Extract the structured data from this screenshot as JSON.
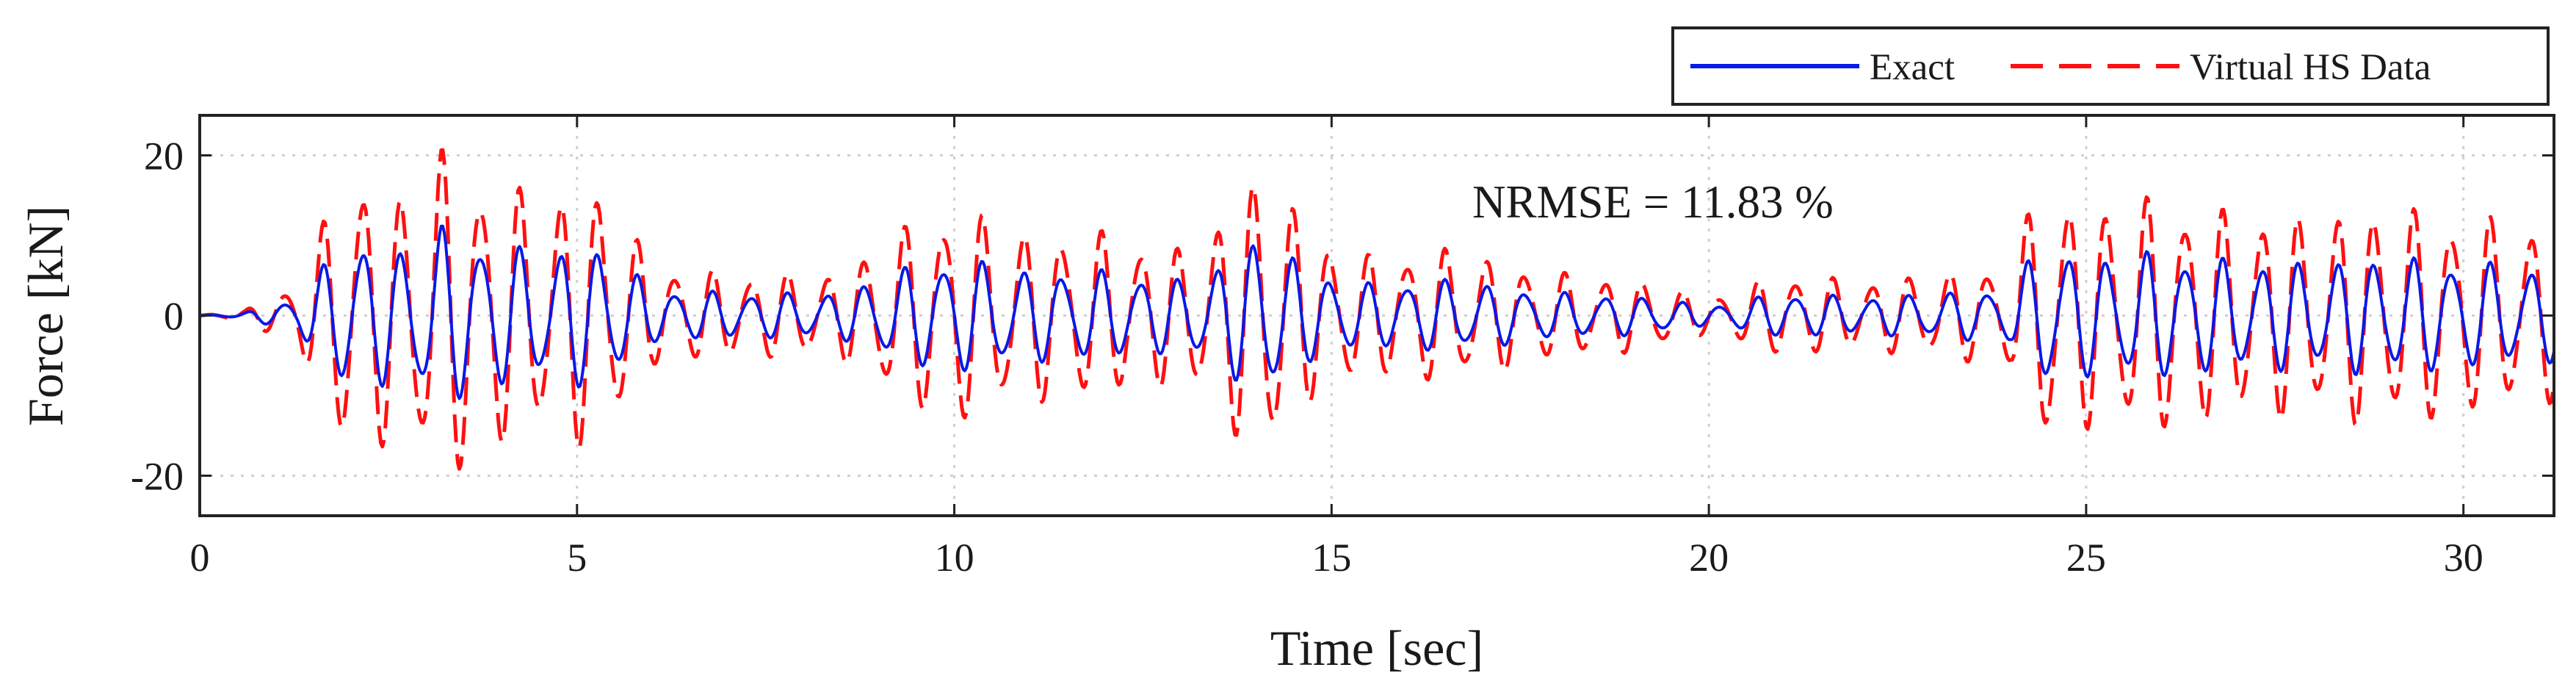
{
  "chart_data": {
    "type": "line",
    "title": "",
    "xlabel": "Time [sec]",
    "ylabel": "Force [kN]",
    "xlim": [
      0,
      31.2
    ],
    "ylim": [
      -25,
      25
    ],
    "x_ticks": [
      0,
      5,
      10,
      15,
      20,
      25,
      30
    ],
    "y_ticks": [
      -20,
      0,
      20
    ],
    "x_tick_labels": [
      "0",
      "5",
      "10",
      "15",
      "20",
      "25",
      "30"
    ],
    "y_tick_labels": [
      "-20",
      "0",
      "20"
    ],
    "grid": true,
    "legend_position": "top-right, outside above the axes",
    "annotation": "NRMSE = 11.83 %",
    "sample_step_sec": 0.02,
    "envelope_breakpoints": {
      "t": [
        0,
        0.6,
        1.3,
        2.0,
        2.6,
        3.2,
        3.9,
        4.6,
        5.3,
        6.0,
        7.0,
        8.5,
        9.2,
        10.0,
        11.0,
        11.8,
        13.0,
        13.6,
        14.1,
        14.7,
        15.5,
        16.5,
        18.0,
        19.3,
        20.0,
        21.0,
        22.0,
        23.0,
        24.0,
        24.4,
        25.0,
        26.0,
        27.0,
        28.0,
        29.0,
        30.0,
        31.2
      ],
      "amplitude_kN": [
        0,
        0.3,
        2,
        9,
        7,
        10,
        8,
        7,
        8,
        3,
        2.5,
        2.5,
        5,
        6.5,
        5,
        5,
        4,
        6,
        9.5,
        5,
        3.5,
        4,
        2.5,
        2,
        1,
        2.5,
        2,
        2.5,
        3,
        8,
        6.5,
        7,
        6,
        6,
        6.5,
        6,
        5
      ]
    },
    "series": [
      {
        "name": "Exact",
        "color": "#0a19e6",
        "style": "solid",
        "carrier_freq_hz": 1.95,
        "amplitude_scale": 1.0
      },
      {
        "name": "Virtual HS Data",
        "color": "#ff1010",
        "style": "dashed",
        "carrier_freq_hz": 1.95,
        "amplitude_scale": 1.85
      }
    ]
  }
}
